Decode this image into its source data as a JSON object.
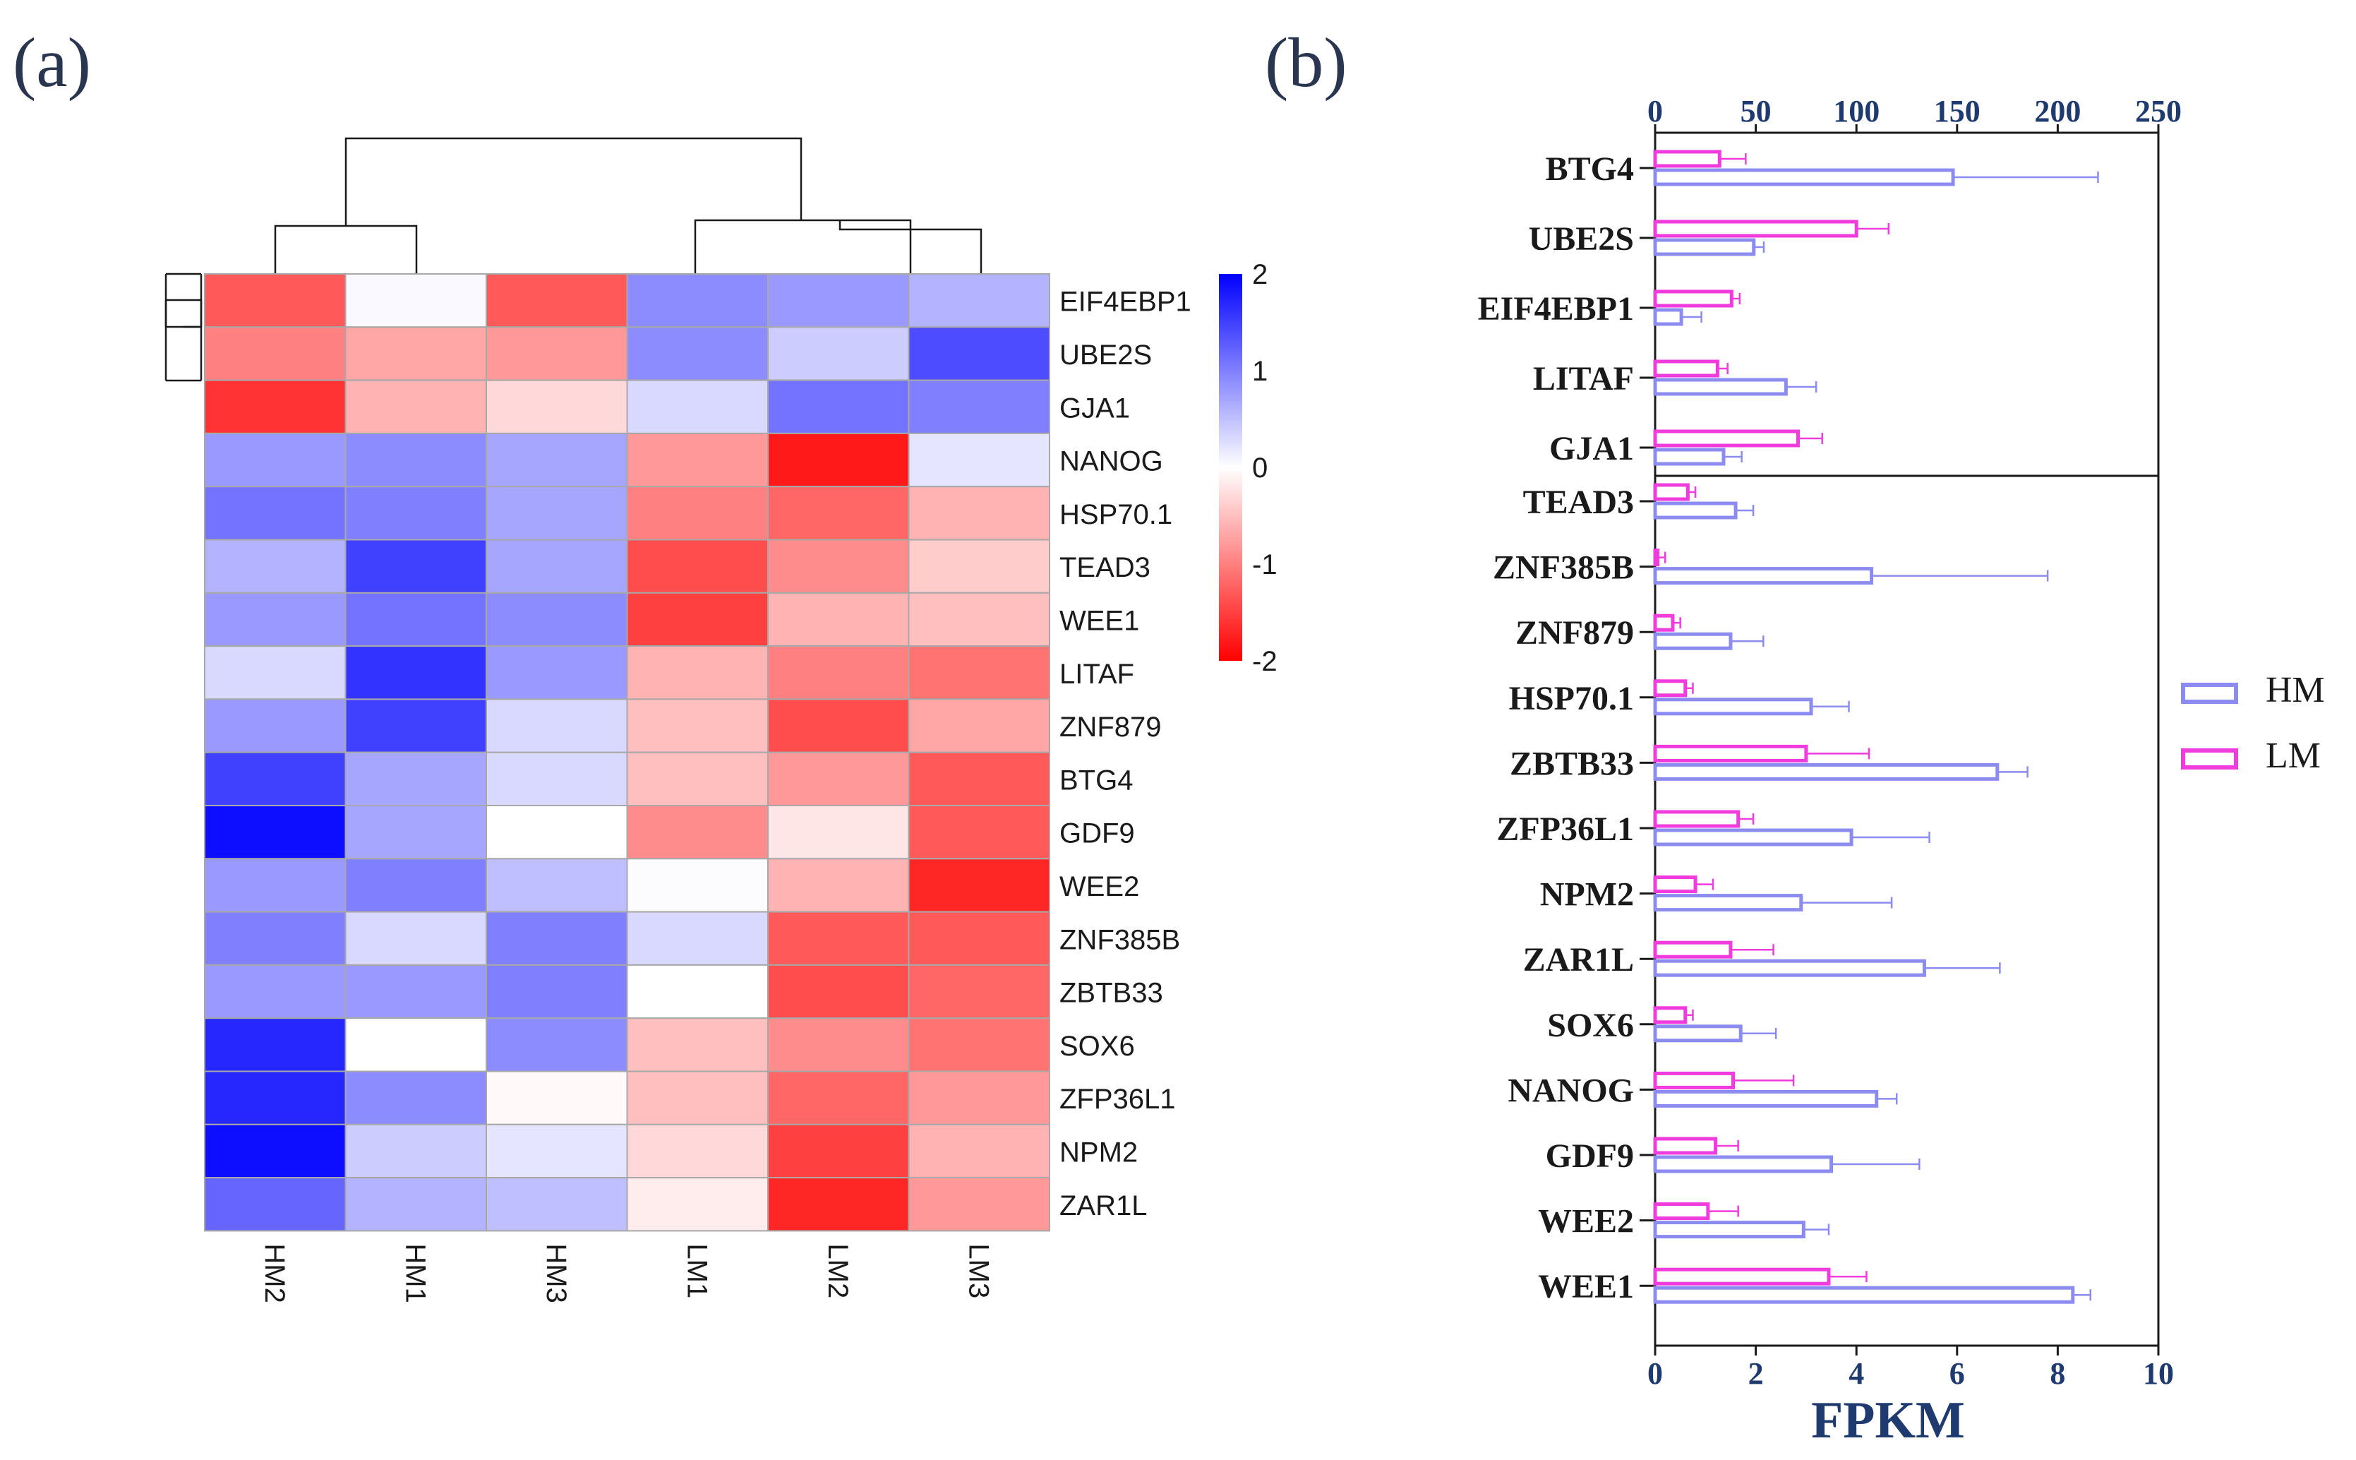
{
  "chart_data": [
    {
      "type": "heatmap",
      "panel_label": "(a)",
      "columns": [
        "HM2",
        "HM1",
        "HM3",
        "LM1",
        "LM2",
        "LM3"
      ],
      "rows": [
        "EIF4EBP1",
        "UBE2S",
        "GJA1",
        "NANOG",
        "HSP70.1",
        "TEAD3",
        "WEE1",
        "LITAF",
        "ZNF879",
        "BTG4",
        "GDF9",
        "WEE2",
        "ZNF385B",
        "ZBTB33",
        "SOX6",
        "ZFP36L1",
        "NPM2",
        "ZAR1L"
      ],
      "values": [
        [
          -1.3,
          0.05,
          -1.3,
          0.9,
          0.8,
          0.6
        ],
        [
          -1.0,
          -0.7,
          -0.8,
          0.9,
          0.4,
          1.4
        ],
        [
          -1.6,
          -0.6,
          -0.3,
          0.3,
          1.1,
          1.0
        ],
        [
          0.8,
          0.9,
          0.7,
          -0.8,
          -1.8,
          0.2
        ],
        [
          1.1,
          1.0,
          0.7,
          -1.0,
          -1.2,
          -0.6
        ],
        [
          0.6,
          1.5,
          0.7,
          -1.4,
          -0.9,
          -0.4
        ],
        [
          0.8,
          1.1,
          0.9,
          -1.5,
          -0.6,
          -0.5
        ],
        [
          0.3,
          1.6,
          0.8,
          -0.6,
          -1.0,
          -1.1
        ],
        [
          0.8,
          1.5,
          0.3,
          -0.5,
          -1.4,
          -0.7
        ],
        [
          1.5,
          0.7,
          0.3,
          -0.5,
          -0.8,
          -1.3
        ],
        [
          1.9,
          0.7,
          0.0,
          -0.9,
          -0.2,
          -1.3
        ],
        [
          0.8,
          1.0,
          0.5,
          0.02,
          -0.6,
          -1.7
        ],
        [
          1.0,
          0.3,
          1.0,
          0.3,
          -1.3,
          -1.3
        ],
        [
          0.8,
          0.8,
          1.0,
          0.0,
          -1.4,
          -1.2
        ],
        [
          1.7,
          0.0,
          0.9,
          -0.5,
          -0.9,
          -1.1
        ],
        [
          1.7,
          0.9,
          -0.05,
          -0.5,
          -1.2,
          -0.8
        ],
        [
          1.9,
          0.4,
          0.2,
          -0.3,
          -1.5,
          -0.6
        ],
        [
          1.2,
          0.6,
          0.5,
          -0.15,
          -1.7,
          -0.8
        ]
      ],
      "colorbar": {
        "min": -2,
        "max": 2,
        "ticks": [
          "2",
          "1",
          "0",
          "-1",
          "-2"
        ],
        "low_color": "#ff0000",
        "mid_color": "#ffffff",
        "high_color": "#0000ff"
      }
    },
    {
      "type": "bar",
      "orientation": "horizontal",
      "panel_label": "(b)",
      "xlabel": "FPKM",
      "top_axis": {
        "range": [
          0,
          250
        ],
        "ticks": [
          "0",
          "50",
          "100",
          "150",
          "200",
          "250"
        ]
      },
      "bottom_axis": {
        "range": [
          0,
          10
        ],
        "ticks": [
          "0",
          "2",
          "4",
          "6",
          "8",
          "10"
        ]
      },
      "legend": {
        "position": "right",
        "entries": [
          "HM",
          "LM"
        ]
      },
      "series_colors": {
        "HM": "#8c8cf0",
        "LM": "#f03cdc"
      },
      "top_group": {
        "axis": "top",
        "categories": [
          "BTG4",
          "UBE2S",
          "EIF4EBP1",
          "LITAF",
          "GJA1"
        ],
        "HM": [
          148,
          49,
          13,
          65,
          34
        ],
        "HM_err": [
          72,
          5,
          10,
          15,
          9
        ],
        "LM": [
          32,
          100,
          38,
          31,
          71
        ],
        "LM_err": [
          13,
          16,
          4,
          5,
          12
        ]
      },
      "bottom_group": {
        "axis": "bottom",
        "categories": [
          "TEAD3",
          "ZNF385B",
          "ZNF879",
          "HSP70.1",
          "ZBTB33",
          "ZFP36L1",
          "NPM2",
          "ZAR1L",
          "SOX6",
          "NANOG",
          "GDF9",
          "WEE2",
          "WEE1"
        ],
        "HM": [
          1.6,
          4.3,
          1.5,
          3.1,
          6.8,
          3.9,
          2.9,
          5.35,
          1.7,
          4.4,
          3.5,
          2.95,
          8.3
        ],
        "HM_err": [
          0.35,
          3.5,
          0.65,
          0.75,
          0.6,
          1.55,
          1.8,
          1.5,
          0.7,
          0.4,
          1.75,
          0.5,
          0.35
        ],
        "LM": [
          0.65,
          0.05,
          0.35,
          0.6,
          3.0,
          1.65,
          0.8,
          1.5,
          0.6,
          1.55,
          1.2,
          1.05,
          3.45
        ],
        "LM_err": [
          0.15,
          0.15,
          0.15,
          0.15,
          1.25,
          0.3,
          0.35,
          0.85,
          0.15,
          1.2,
          0.45,
          0.6,
          0.75
        ]
      }
    }
  ]
}
